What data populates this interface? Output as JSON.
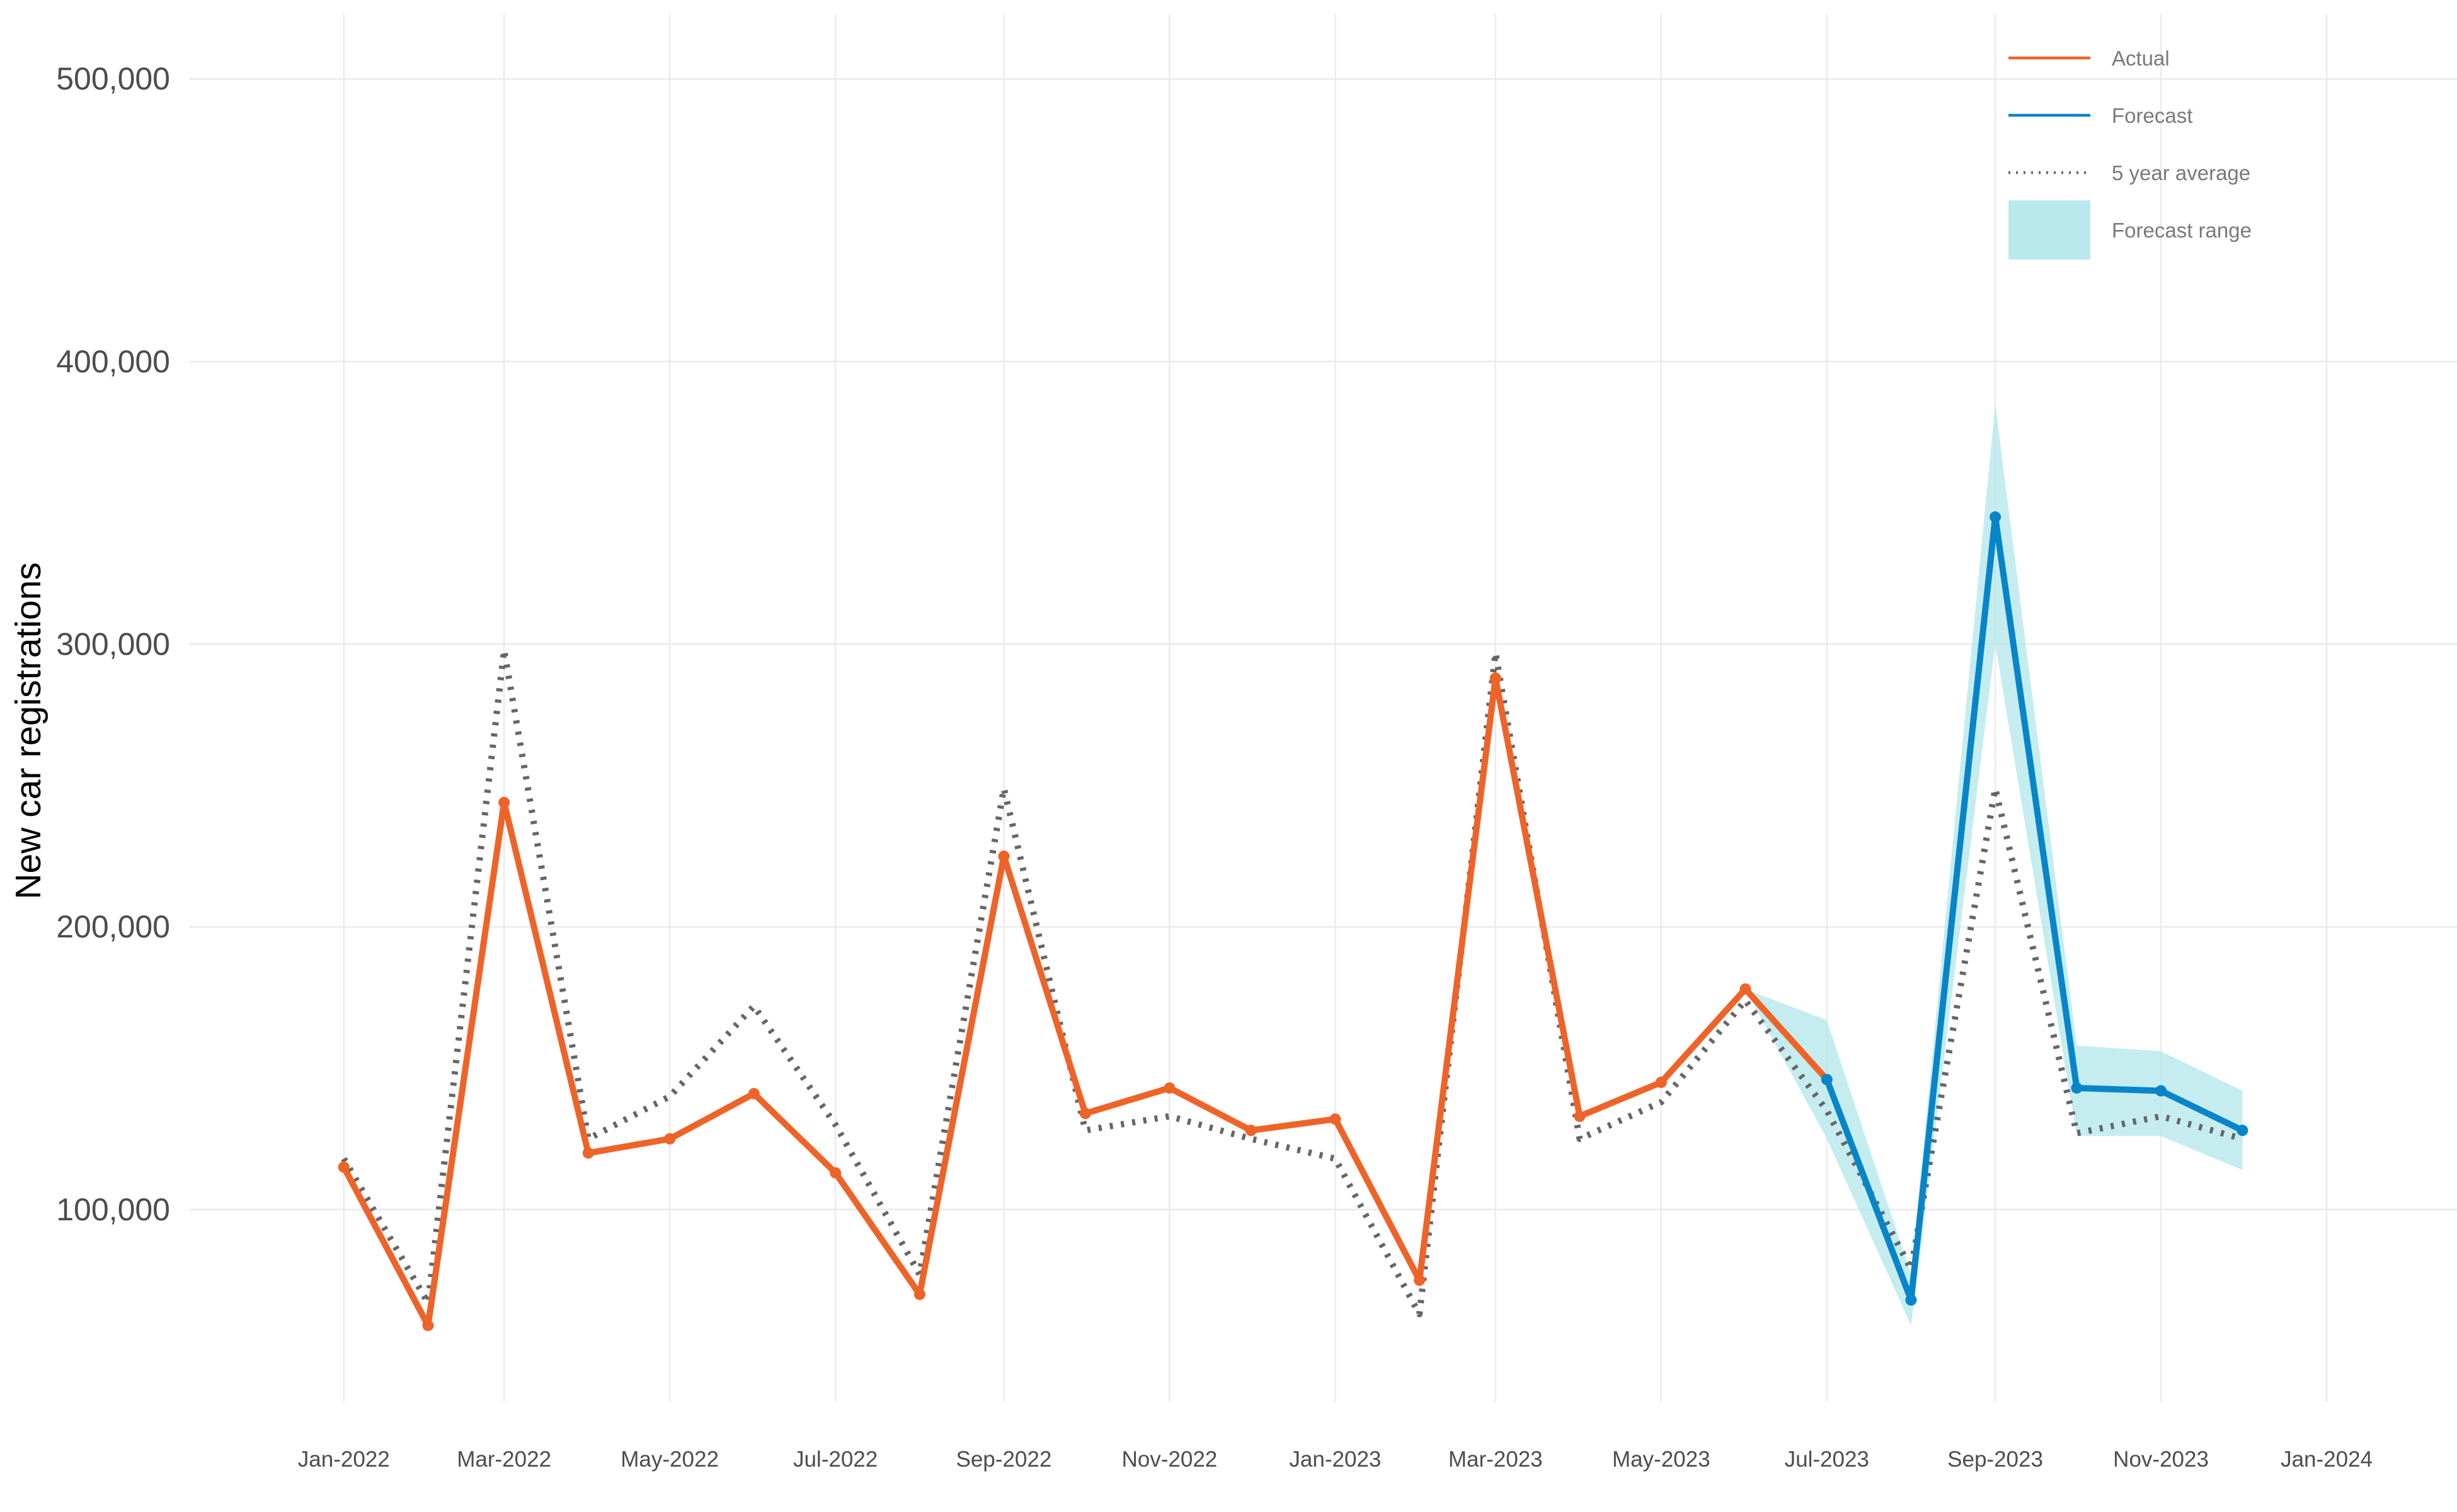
{
  "chart_data": {
    "type": "line",
    "title": "",
    "xlabel": "",
    "ylabel": "New car registrations",
    "ylim": [
      32000,
      523000
    ],
    "yticks": [
      100000,
      200000,
      300000,
      400000,
      500000
    ],
    "ytick_labels": [
      "100,000",
      "200,000",
      "300,000",
      "400,000",
      "500,000"
    ],
    "xticks": [
      "2022-01",
      "2022-03",
      "2022-05",
      "2022-07",
      "2022-09",
      "2022-11",
      "2023-01",
      "2023-03",
      "2023-05",
      "2023-07",
      "2023-09",
      "2023-11",
      "2024-01"
    ],
    "xtick_labels": [
      "Jan-2022",
      "Mar-2022",
      "May-2022",
      "Jul-2022",
      "Sep-2022",
      "Nov-2022",
      "Jan-2023",
      "Mar-2023",
      "May-2023",
      "Jul-2023",
      "Sep-2023",
      "Nov-2023",
      "Jan-2024"
    ],
    "xlim": [
      "2021-11-05",
      "2024-02-18"
    ],
    "legend_position": "top-right",
    "grid": true,
    "series": [
      {
        "name": "Actual",
        "color": "#ee6428",
        "style": "solid",
        "x": [
          "2022-01",
          "2022-02",
          "2022-03",
          "2022-04",
          "2022-05",
          "2022-06",
          "2022-07",
          "2022-08",
          "2022-09",
          "2022-10",
          "2022-11",
          "2022-12",
          "2023-01",
          "2023-02",
          "2023-03",
          "2023-04",
          "2023-05",
          "2023-06",
          "2023-07"
        ],
        "values": [
          115000,
          59000,
          244000,
          120000,
          125000,
          141000,
          113000,
          70000,
          225000,
          134000,
          143000,
          128000,
          132000,
          75000,
          288000,
          133000,
          145000,
          178000,
          146000
        ]
      },
      {
        "name": "Forecast",
        "color": "#0885c8",
        "style": "solid",
        "x": [
          "2023-07",
          "2023-08",
          "2023-09",
          "2023-10",
          "2023-11",
          "2023-12"
        ],
        "values": [
          146000,
          68000,
          345000,
          143000,
          142000,
          128000
        ]
      },
      {
        "name": "5 year average",
        "color": "#666666",
        "style": "dotted",
        "x": [
          "2022-01",
          "2022-02",
          "2022-03",
          "2022-04",
          "2022-05",
          "2022-06",
          "2022-07",
          "2022-08",
          "2022-09",
          "2022-10",
          "2022-11",
          "2022-12",
          "2023-01",
          "2023-02",
          "2023-03",
          "2023-04",
          "2023-05",
          "2023-06",
          "2023-07",
          "2023-08",
          "2023-09",
          "2023-10",
          "2023-11",
          "2023-12"
        ],
        "values": [
          118000,
          67000,
          298000,
          125000,
          140000,
          172000,
          130000,
          77000,
          249000,
          128000,
          133000,
          125000,
          118000,
          63000,
          297000,
          125000,
          138000,
          174000,
          135000,
          79000,
          249000,
          127000,
          133000,
          125000
        ]
      },
      {
        "name": "Forecast range",
        "color": "#b5e8ec",
        "style": "band",
        "x": [
          "2023-06",
          "2023-07",
          "2023-08",
          "2023-09",
          "2023-10",
          "2023-11",
          "2023-12"
        ],
        "lower": [
          178000,
          125000,
          59000,
          300000,
          126000,
          126000,
          114000
        ],
        "upper": [
          178000,
          167000,
          77000,
          385000,
          158000,
          156000,
          142000
        ]
      }
    ]
  }
}
